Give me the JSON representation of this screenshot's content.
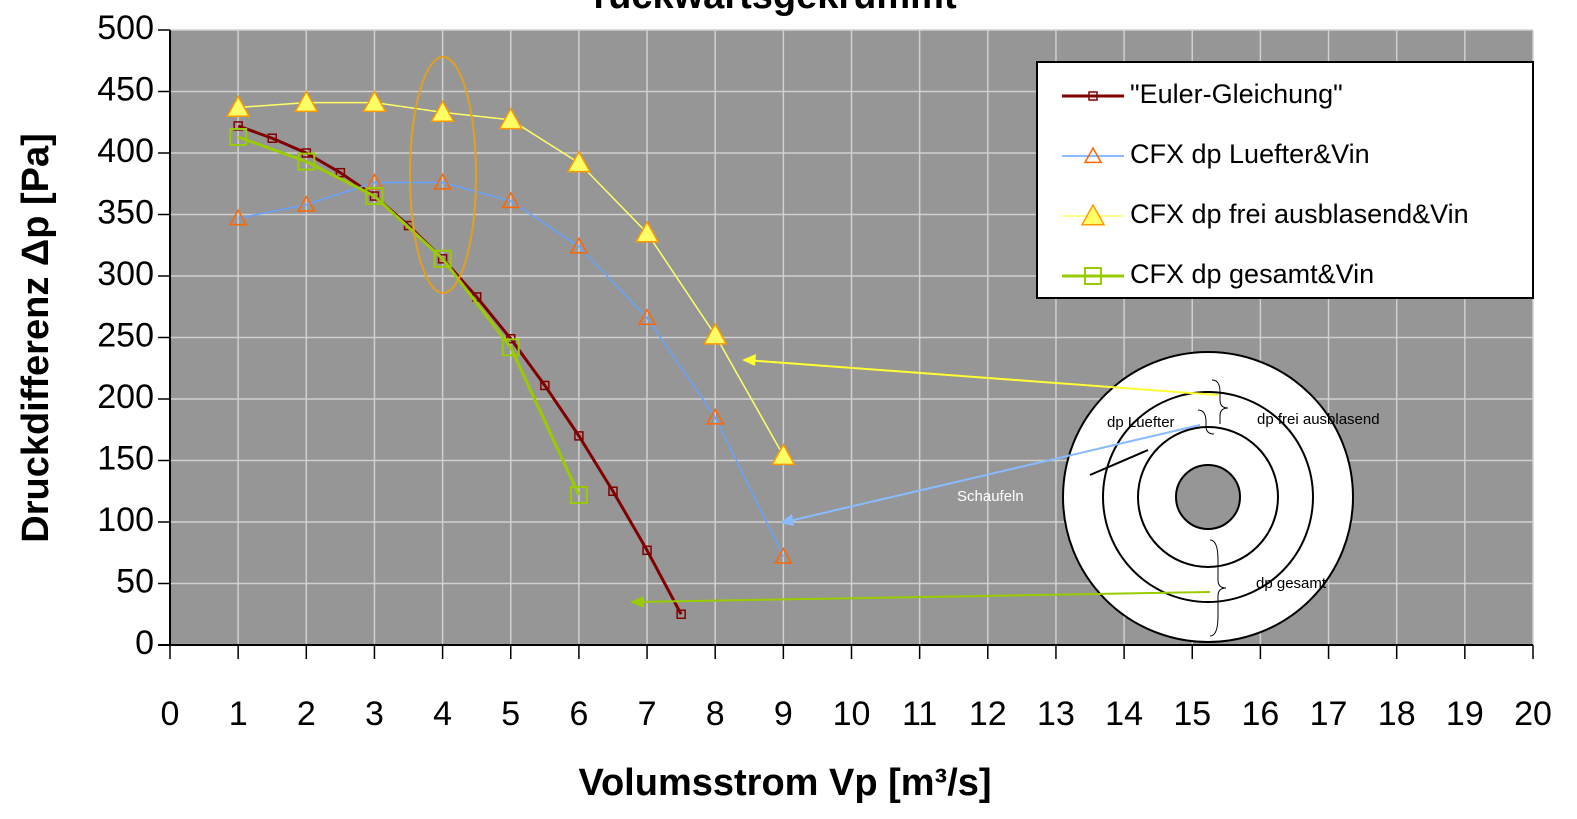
{
  "chart_data": {
    "type": "line",
    "title": "rückwärtsgekrümmt",
    "x_label": "Volumsstrom Vp [m³/s]",
    "y_label": "Druckdifferenz Δp [Pa]",
    "xlim": [
      0,
      20
    ],
    "ylim": [
      0,
      500
    ],
    "xticks": [
      0,
      1,
      2,
      3,
      4,
      5,
      6,
      7,
      8,
      9,
      10,
      11,
      12,
      13,
      14,
      15,
      16,
      17,
      18,
      19,
      20
    ],
    "yticks": [
      0,
      50,
      100,
      150,
      200,
      250,
      300,
      350,
      400,
      450,
      500
    ],
    "grid": true,
    "legend": "upper right",
    "series": [
      {
        "name": "\"Euler-Gleichung\"",
        "color": "#800000",
        "marker": "square-small",
        "x": [
          1,
          1.5,
          2,
          2.5,
          3,
          3.5,
          4,
          4.5,
          5,
          5.5,
          6,
          6.5,
          7,
          7.5
        ],
        "values": [
          422,
          412,
          400,
          384,
          365,
          341,
          314,
          283,
          249,
          211,
          170,
          125,
          77,
          25
        ]
      },
      {
        "name": "CFX dp Luefter&Vin",
        "color": "#66a3ff",
        "marker": "triangle-open",
        "x": [
          1,
          2,
          3,
          4,
          5,
          6,
          7,
          8,
          9
        ],
        "values": [
          347,
          358,
          376,
          376,
          361,
          324,
          266,
          185,
          72
        ]
      },
      {
        "name": "CFX dp frei ausblasend&Vin",
        "color": "#ffff66",
        "marker": "triangle-filled",
        "x": [
          1,
          2,
          3,
          4,
          5,
          6,
          7,
          8,
          9
        ],
        "values": [
          437,
          441,
          441,
          433,
          427,
          392,
          335,
          252,
          154
        ]
      },
      {
        "name": "CFX dp gesamt&Vin",
        "color": "#99cc00",
        "marker": "square-open",
        "x": [
          1,
          2,
          3,
          4,
          5,
          6
        ],
        "values": [
          413,
          393,
          365,
          314,
          242,
          122
        ]
      }
    ],
    "annotations": [
      "dp Luefter",
      "dp frei ausblasend",
      "Schaufeln",
      "dp gesamt"
    ]
  }
}
